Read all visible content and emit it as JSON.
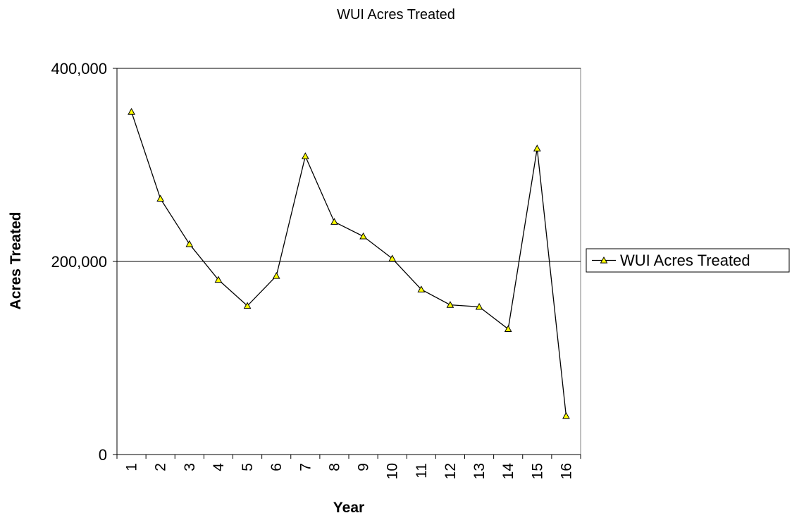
{
  "chart_data": {
    "type": "line",
    "title": "WUI Acres Treated",
    "x_label": "Year",
    "y_label": "Acres Treated",
    "categories": [
      "1",
      "2",
      "3",
      "4",
      "5",
      "6",
      "7",
      "8",
      "9",
      "10",
      "11",
      "12",
      "13",
      "14",
      "15",
      "16"
    ],
    "series": [
      {
        "name": "WUI Acres Treated",
        "color": "#000000",
        "marker_color": "#ffff00",
        "values": [
          355000,
          265000,
          218000,
          181000,
          154000,
          185000,
          309000,
          241000,
          226000,
          203000,
          171000,
          155000,
          153000,
          130000,
          317000,
          40000
        ]
      }
    ],
    "ylim": [
      0,
      400000
    ],
    "yticks": [
      0,
      {
        "value": 200000,
        "label": "200,000"
      },
      {
        "value": 400000,
        "label": "400,000"
      }
    ],
    "grid": true,
    "legend": "right"
  }
}
